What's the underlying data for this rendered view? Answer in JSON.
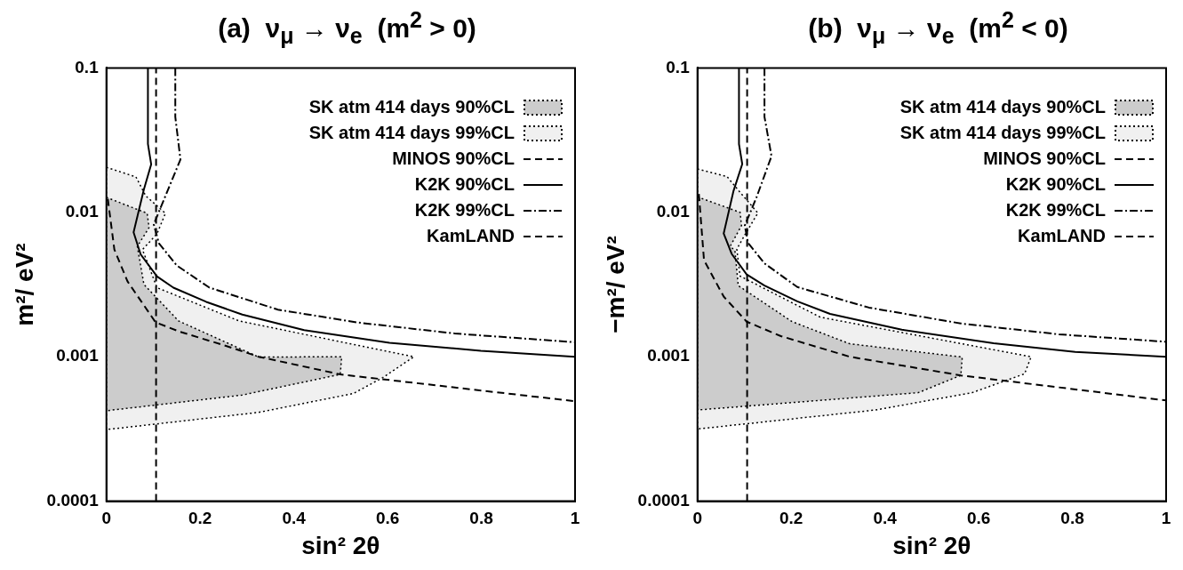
{
  "chart_data": [
    {
      "type": "line",
      "title": "(a)  ν$_{μ}$ → ν$_{e}$  (m$^{2}$ > 0)",
      "xlabel": "sin² 2θ",
      "ylabel": "m²/ eV²",
      "log": "y",
      "legend": "top right",
      "xlim": [
        0,
        1
      ],
      "xticks": [
        0,
        0.2,
        0.4,
        0.6,
        0.8,
        1
      ],
      "ylim": [
        0.0001,
        0.1
      ],
      "yticks": [
        0.0001,
        0.001,
        0.01,
        0.1
      ],
      "series": [
        {
          "name": "SK atm 414 days 90%CL",
          "type": "area",
          "color": "#cccccc",
          "line_style": "dotted",
          "x": [
            0,
            0.087,
            0.091,
            0.066,
            0.08,
            0.154,
            0.325,
            0.502,
            0.499,
            0.29,
            0,
            0
          ],
          "values": [
            0.0127,
            0.00985,
            0.00785,
            0.00581,
            0.00317,
            0.00177,
            0.000995,
            0.001,
            0.000755,
            0.000543,
            0.000423,
            0.0127
          ]
        },
        {
          "name": "SK atm 414 days 99%CL",
          "type": "area",
          "color": "#f0f0f0",
          "line_style": "dotted",
          "x": [
            0,
            0.063,
            0.084,
            0.126,
            0.108,
            0.077,
            0.108,
            0.283,
            0.656,
            0.59,
            0.527,
            0.325,
            0,
            0
          ],
          "values": [
            0.0205,
            0.0176,
            0.013,
            0.00985,
            0.0071,
            0.00552,
            0.00301,
            0.00177,
            0.001,
            0.000718,
            0.000557,
            0.000412,
            0.000313,
            0.0205
          ]
        },
        {
          "name": "MINOS 90%CL",
          "type": "line",
          "color": "#000000",
          "line_style": "dashed",
          "x": [
            0.003,
            0.017,
            0.045,
            0.105,
            0.157,
            0.255,
            0.325,
            0.499,
            1
          ],
          "values": [
            0.0124,
            0.00552,
            0.00333,
            0.00173,
            0.00149,
            0.00119,
            0.001,
            0.000755,
            0.000492
          ]
        },
        {
          "name": "K2K 90%CL",
          "type": "line",
          "color": "#000000",
          "line_style": "solid",
          "x": [
            0.0886,
            0.0886,
            0.0956,
            0.08,
            0.058,
            0.073,
            0.108,
            0.143,
            0.213,
            0.29,
            0.422,
            0.604,
            0.799,
            1
          ],
          "values": [
            0.1,
            0.0298,
            0.0215,
            0.0144,
            0.00728,
            0.00512,
            0.0036,
            0.00301,
            0.0024,
            0.00196,
            0.00153,
            0.00125,
            0.0011,
            0.001
          ]
        },
        {
          "name": "K2K 99%CL",
          "type": "line",
          "color": "#000000",
          "line_style": "dashdot",
          "x": [
            0.147,
            0.147,
            0.158,
            0.126,
            0.101,
            0.112,
            0.15,
            0.22,
            0.366,
            0.534,
            0.743,
            1
          ],
          "values": [
            0.1,
            0.0458,
            0.0232,
            0.013,
            0.00826,
            0.00611,
            0.00429,
            0.00301,
            0.00212,
            0.00173,
            0.00145,
            0.00126
          ]
        },
        {
          "name": "KamLAND",
          "type": "line",
          "color": "#000000",
          "line_style": "dashed",
          "x": [
            0.106,
            0.106
          ],
          "values": [
            0.0001,
            0.1
          ]
        }
      ]
    },
    {
      "type": "line",
      "title": "(b)  ν$_{μ}$ → ν$_{e}$  (m$^{2}$ < 0)",
      "xlabel": "sin² 2θ",
      "ylabel": "−m²/ eV²",
      "log": "y",
      "legend": "top right",
      "xlim": [
        0,
        1
      ],
      "xticks": [
        0,
        0.2,
        0.4,
        0.6,
        0.8,
        1
      ],
      "ylim": [
        0.0001,
        0.1
      ],
      "yticks": [
        0.0001,
        0.001,
        0.01,
        0.1
      ],
      "series": [
        {
          "name": "SK atm 414 days 90%CL",
          "type": "area",
          "color": "#cccccc",
          "line_style": "dotted",
          "x": [
            0,
            0.091,
            0.094,
            0.07,
            0.08,
            0.087,
            0.202,
            0.325,
            0.565,
            0.562,
            0.471,
            0,
            0
          ],
          "values": [
            0.0128,
            0.01,
            0.0081,
            0.00583,
            0.00542,
            0.00311,
            0.00175,
            0.00123,
            0.000995,
            0.000743,
            0.000564,
            0.000428,
            0.0128
          ]
        },
        {
          "name": "SK atm 414 days 99%CL",
          "type": "area",
          "color": "#f0f0f0",
          "line_style": "dotted",
          "x": [
            0,
            0.063,
            0.094,
            0.129,
            0.101,
            0.084,
            0.091,
            0.262,
            0.712,
            0.698,
            0.586,
            0.38,
            0,
            0
          ],
          "values": [
            0.02,
            0.0177,
            0.0134,
            0.0099,
            0.00697,
            0.00556,
            0.00362,
            0.00188,
            0.001,
            0.000762,
            0.000564,
            0.000428,
            0.000316,
            0.02
          ]
        },
        {
          "name": "MINOS 90%CL",
          "type": "line",
          "color": "#000000",
          "line_style": "dashed",
          "x": [
            0.003,
            0.014,
            0.056,
            0.105,
            0.178,
            0.325,
            0.562,
            1
          ],
          "values": [
            0.0134,
            0.00466,
            0.00261,
            0.00175,
            0.00139,
            0.001,
            0.000743,
            0.000498
          ]
        },
        {
          "name": "K2K 90%CL",
          "type": "line",
          "color": "#000000",
          "line_style": "solid",
          "x": [
            0.0886,
            0.0886,
            0.0956,
            0.077,
            0.056,
            0.073,
            0.105,
            0.143,
            0.213,
            0.283,
            0.436,
            0.632,
            0.806,
            1
          ],
          "values": [
            0.1,
            0.0297,
            0.0216,
            0.0141,
            0.00714,
            0.00516,
            0.00372,
            0.00311,
            0.00242,
            0.00198,
            0.00154,
            0.00124,
            0.00108,
            0.001
          ]
        },
        {
          "name": "K2K 99%CL",
          "type": "line",
          "color": "#000000",
          "line_style": "dashdot",
          "x": [
            0.143,
            0.143,
            0.158,
            0.126,
            0.101,
            0.108,
            0.143,
            0.213,
            0.366,
            0.562,
            0.771,
            1
          ],
          "values": [
            0.1,
            0.0459,
            0.0245,
            0.0127,
            0.0081,
            0.00614,
            0.00443,
            0.00304,
            0.00219,
            0.0017,
            0.00143,
            0.00127
          ]
        },
        {
          "name": "KamLAND",
          "type": "line",
          "color": "#000000",
          "line_style": "dashed",
          "x": [
            0.106,
            0.106
          ],
          "values": [
            0.0001,
            0.1
          ]
        }
      ]
    }
  ]
}
